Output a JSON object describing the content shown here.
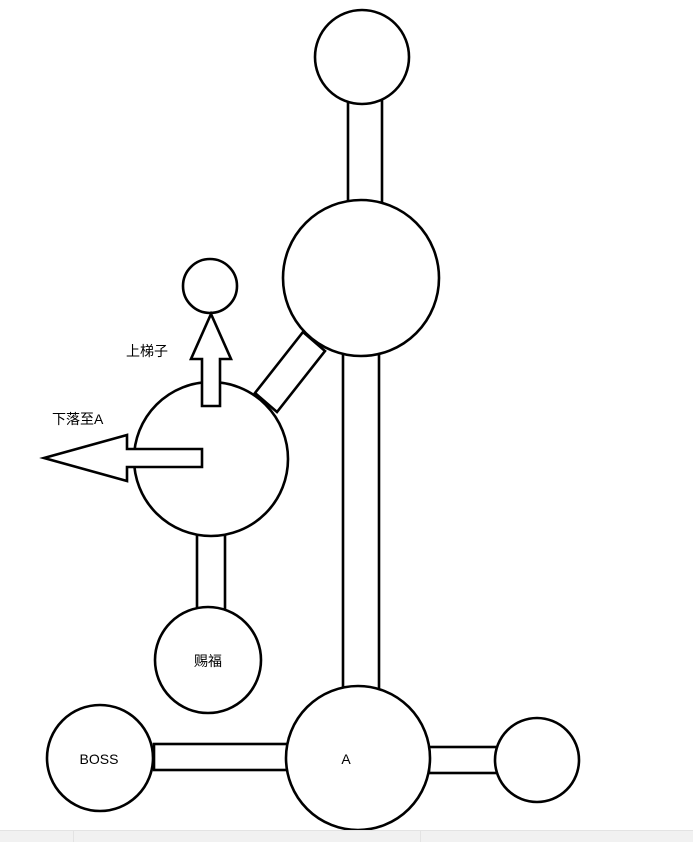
{
  "diagram": {
    "labels": {
      "climb_ladder": "上梯子",
      "drop_to_a": "下落至A",
      "blessing": "赐福",
      "boss": "BOSS",
      "node_a": "A"
    }
  },
  "colors": {
    "stroke": "#000000",
    "fill": "#ffffff"
  }
}
